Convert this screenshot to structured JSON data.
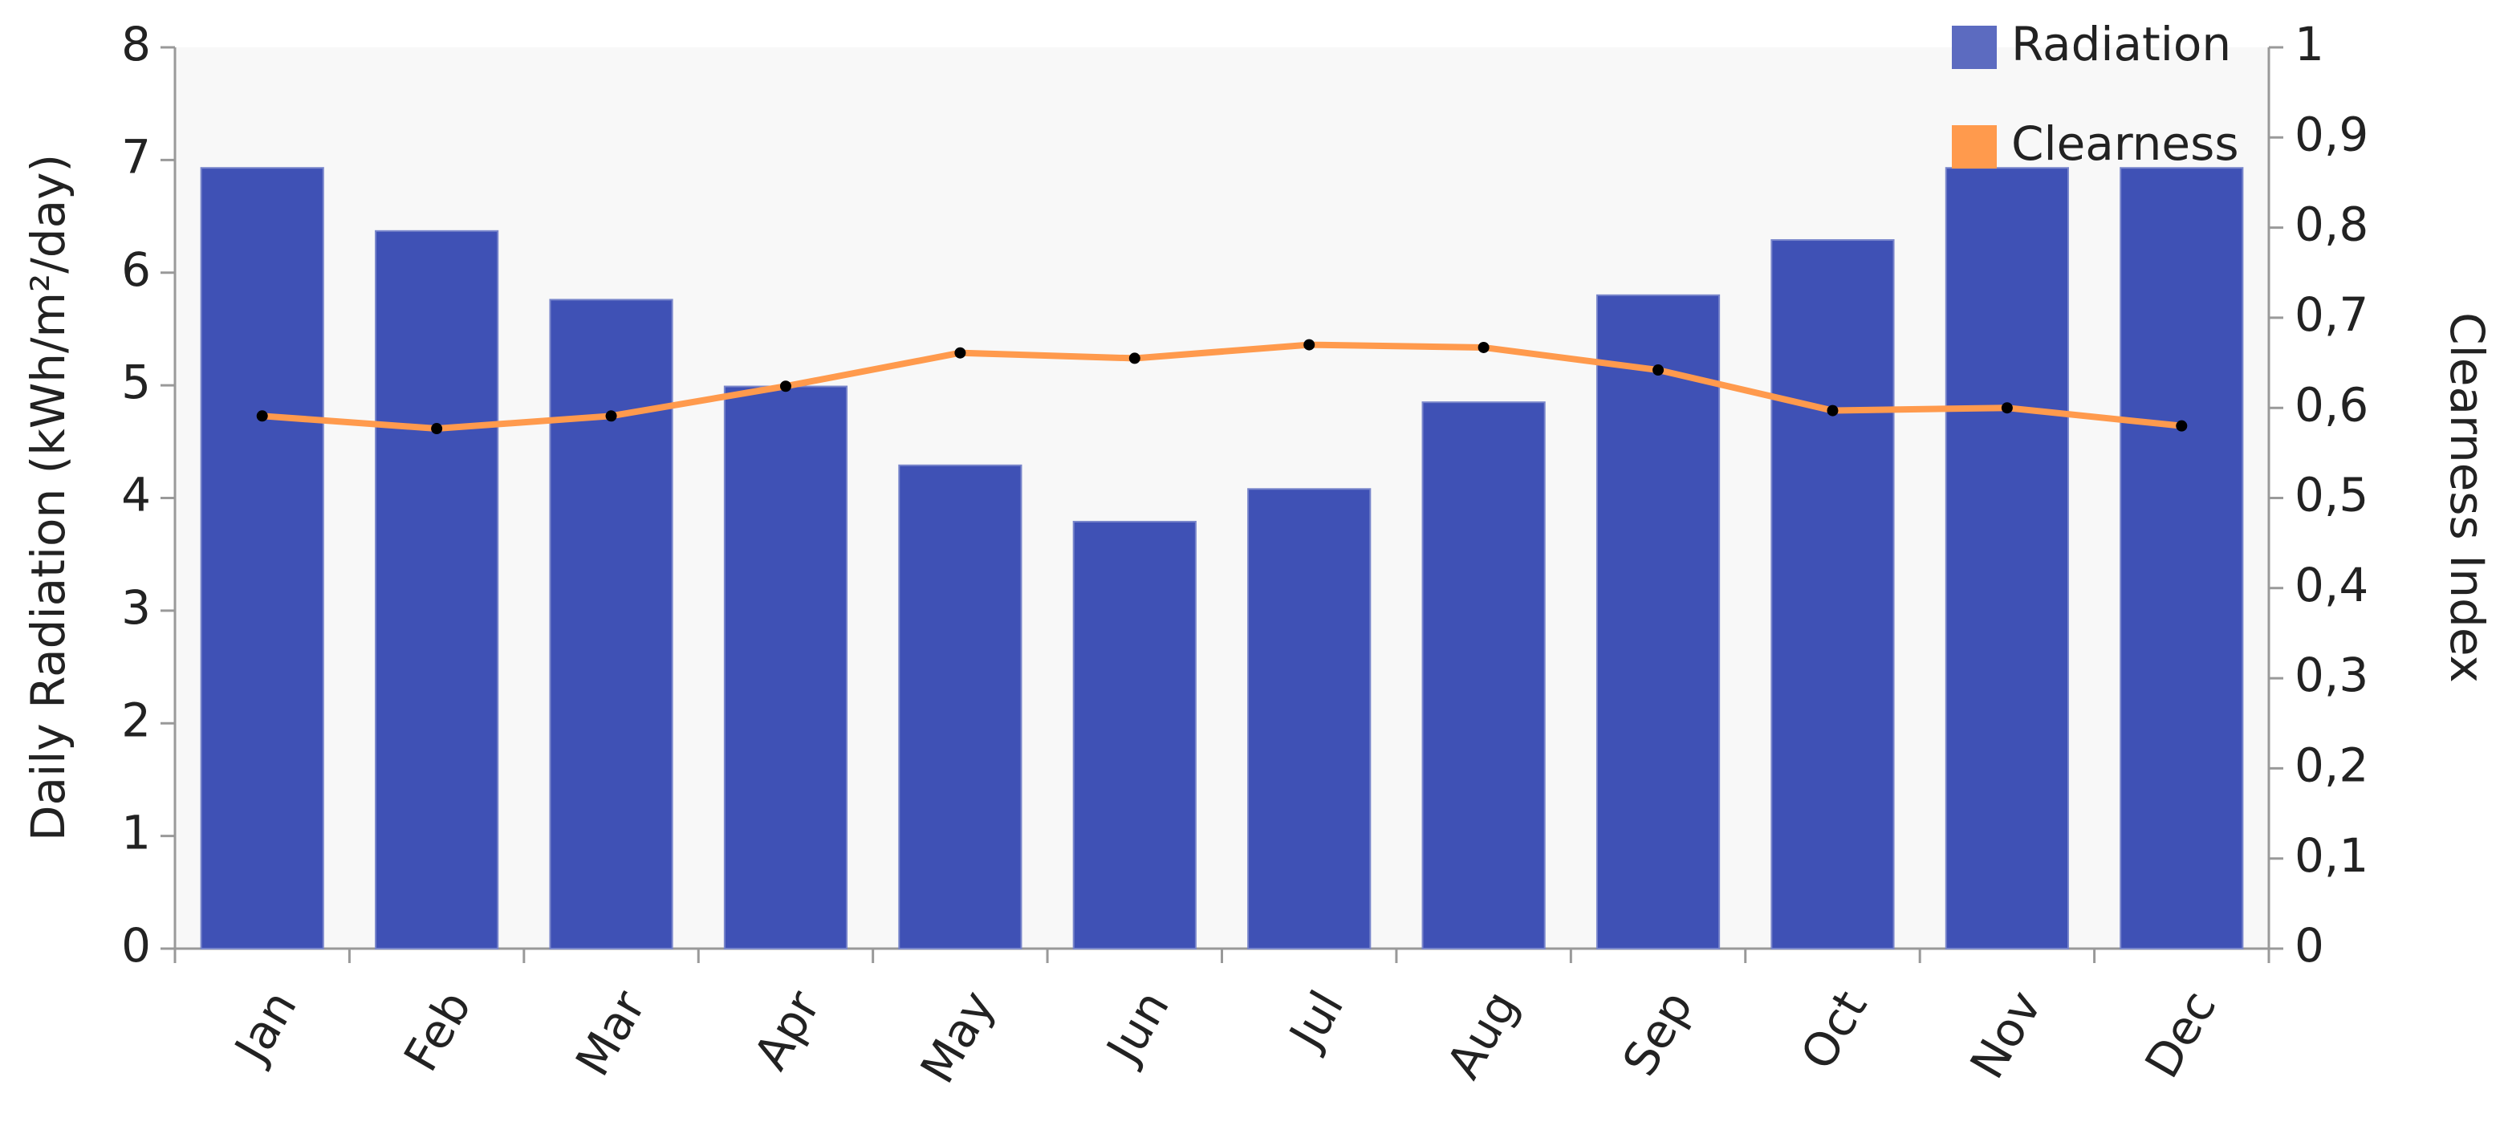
{
  "chart_data": {
    "type": "bar",
    "y_label": "Daily Radiation (kWh/m²/day)",
    "y2_label": "Clearness Index",
    "categories": [
      "Jan",
      "Feb",
      "Mar",
      "Apr",
      "May",
      "Jun",
      "Jul",
      "Aug",
      "Sep",
      "Oct",
      "Nov",
      "Dec"
    ],
    "series": [
      {
        "name": "Radiation",
        "type": "bar",
        "color": "#3f51b5",
        "values": [
          6.93,
          6.37,
          5.76,
          4.99,
          4.29,
          3.79,
          4.08,
          4.85,
          5.8,
          6.29,
          6.93,
          6.93
        ]
      },
      {
        "name": "Clearness",
        "type": "line",
        "axis": "y2",
        "color": "#ff9a4d",
        "values": [
          0.591,
          0.577,
          0.591,
          0.624,
          0.661,
          0.655,
          0.67,
          0.667,
          0.642,
          0.597,
          0.6,
          0.58
        ]
      }
    ],
    "ylim": [
      0,
      8
    ],
    "yticks": [
      0,
      1,
      2,
      3,
      4,
      5,
      6,
      7,
      8
    ],
    "y2lim": [
      0,
      1
    ],
    "y2ticks": [
      0,
      {
        "value": 0.1,
        "label": "0,1"
      },
      {
        "value": 0.2,
        "label": "0,2"
      },
      {
        "value": 0.3,
        "label": "0,3"
      },
      {
        "value": 0.4,
        "label": "0,4"
      },
      {
        "value": 0.5,
        "label": "0,5"
      },
      {
        "value": 0.6,
        "label": "0,6"
      },
      {
        "value": 0.7,
        "label": "0,7"
      },
      {
        "value": 0.8,
        "label": "0,8"
      },
      {
        "value": 0.9,
        "label": "0,9"
      },
      1
    ],
    "legend": "top-right"
  }
}
